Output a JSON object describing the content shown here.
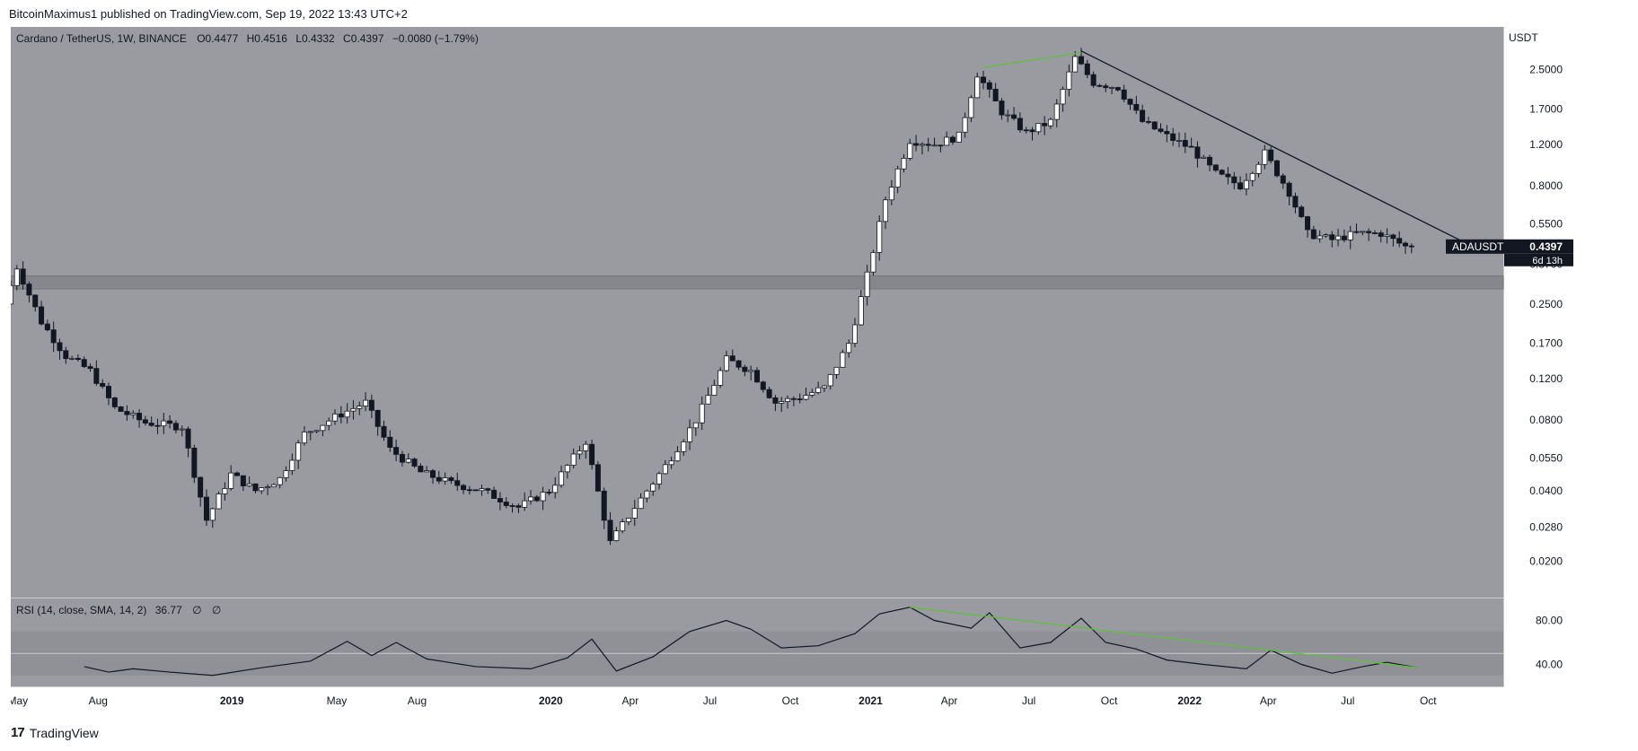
{
  "header": {
    "publisher_line": "BitcoinMaximus1 published on TradingView.com, Sep 19, 2022 13:43 UTC+2"
  },
  "legend": {
    "symbol": "Cardano / TetherUS, 1W, BINANCE",
    "o_label": "O",
    "o_value": "0.4477",
    "h_label": "H",
    "h_value": "0.4516",
    "l_label": "L",
    "l_value": "0.4332",
    "c_label": "C",
    "c_value": "0.4397",
    "change": "−0.0080 (−1.79%)"
  },
  "rsi_legend": {
    "label": "RSI (14, close, SMA, 14, 2)",
    "value": "36.77",
    "extra1": "∅",
    "extra2": "∅"
  },
  "price_badge": {
    "ticker": "ADAUSDT",
    "price": "0.4397",
    "countdown": "6d 13h"
  },
  "footer": {
    "brand": "TradingView",
    "logo_glyph": "17"
  },
  "colors": {
    "background": "#999ba0",
    "up_candle": "#ffffff",
    "down_candle": "#131722",
    "trendline": "#131722",
    "divergence": "#5ec13c",
    "support_zone": "#7f8187",
    "badge_bg": "#131722"
  },
  "chart_data": [
    {
      "type": "candlestick",
      "title": "Cardano / TetherUS, 1W, BINANCE",
      "scale": "log",
      "y_unit": "USDT",
      "ylim": [
        0.014,
        3.8
      ],
      "y_ticks": [
        "2.5000",
        "1.7000",
        "1.2000",
        "0.8000",
        "0.5500",
        "0.3700",
        "0.2500",
        "0.1700",
        "0.1200",
        "0.0800",
        "0.0550",
        "0.0400",
        "0.0280",
        "0.0200"
      ],
      "x_ticks": [
        "May",
        "Aug",
        "2019",
        "May",
        "Aug",
        "2020",
        "Apr",
        "Jul",
        "Oct",
        "2021",
        "Apr",
        "Jul",
        "Oct",
        "2022",
        "Apr",
        "Jul",
        "Oct"
      ],
      "xlim": [
        "2018-04-23",
        "2022-12-26"
      ],
      "x_tick_dates": [
        "2018-05-01",
        "2018-08-01",
        "2019-01-01",
        "2019-05-01",
        "2019-08-01",
        "2020-01-01",
        "2020-04-01",
        "2020-07-01",
        "2020-10-01",
        "2021-01-01",
        "2021-04-01",
        "2021-07-01",
        "2021-10-01",
        "2022-01-01",
        "2022-04-01",
        "2022-07-01",
        "2022-10-01"
      ],
      "price_path": [
        [
          "2018-04-23",
          0.25
        ],
        [
          "2018-05-07",
          0.36
        ],
        [
          "2018-06-04",
          0.21
        ],
        [
          "2018-07-02",
          0.15
        ],
        [
          "2018-07-30",
          0.13
        ],
        [
          "2018-08-27",
          0.09
        ],
        [
          "2018-10-01",
          0.078
        ],
        [
          "2018-11-12",
          0.075
        ],
        [
          "2018-12-10",
          0.03
        ],
        [
          "2019-01-07",
          0.047
        ],
        [
          "2019-02-04",
          0.04
        ],
        [
          "2019-03-04",
          0.045
        ],
        [
          "2019-04-01",
          0.07
        ],
        [
          "2019-05-13",
          0.085
        ],
        [
          "2019-06-10",
          0.095
        ],
        [
          "2019-07-08",
          0.06
        ],
        [
          "2019-08-12",
          0.048
        ],
        [
          "2019-09-16",
          0.043
        ],
        [
          "2019-10-21",
          0.04
        ],
        [
          "2019-12-02",
          0.034
        ],
        [
          "2020-01-06",
          0.04
        ],
        [
          "2020-02-17",
          0.065
        ],
        [
          "2020-03-16",
          0.024
        ],
        [
          "2020-04-13",
          0.034
        ],
        [
          "2020-05-18",
          0.051
        ],
        [
          "2020-06-22",
          0.08
        ],
        [
          "2020-07-27",
          0.145
        ],
        [
          "2020-08-24",
          0.13
        ],
        [
          "2020-09-21",
          0.095
        ],
        [
          "2020-10-19",
          0.1
        ],
        [
          "2020-11-16",
          0.11
        ],
        [
          "2020-12-14",
          0.17
        ],
        [
          "2021-01-04",
          0.33
        ],
        [
          "2021-01-25",
          0.7
        ],
        [
          "2021-02-22",
          1.25
        ],
        [
          "2021-03-22",
          1.2
        ],
        [
          "2021-04-19",
          1.3
        ],
        [
          "2021-05-10",
          2.4
        ],
        [
          "2021-06-07",
          1.65
        ],
        [
          "2021-07-05",
          1.35
        ],
        [
          "2021-08-02",
          1.5
        ],
        [
          "2021-08-30",
          2.8
        ],
        [
          "2021-09-20",
          2.2
        ],
        [
          "2021-10-18",
          2.1
        ],
        [
          "2021-11-15",
          1.5
        ],
        [
          "2021-12-13",
          1.3
        ],
        [
          "2022-01-10",
          1.15
        ],
        [
          "2022-02-07",
          0.9
        ],
        [
          "2022-03-07",
          0.8
        ],
        [
          "2022-04-04",
          1.1
        ],
        [
          "2022-05-02",
          0.75
        ],
        [
          "2022-05-23",
          0.5
        ],
        [
          "2022-06-20",
          0.47
        ],
        [
          "2022-07-18",
          0.5
        ],
        [
          "2022-08-15",
          0.5
        ],
        [
          "2022-09-12",
          0.44
        ]
      ],
      "support_zone": [
        0.29,
        0.33
      ],
      "descending_resistance": [
        [
          "2021-08-30",
          3.0
        ],
        [
          "2022-11-21",
          0.44
        ]
      ],
      "last_price": 0.4397
    },
    {
      "type": "line",
      "title": "RSI (14, close, SMA, 14, 2)",
      "y_ticks": [
        "80.00",
        "40.00"
      ],
      "band": [
        30,
        70
      ],
      "ylim": [
        20,
        100
      ],
      "series": [
        {
          "values": [
            [
              "2018-07-16",
              38
            ],
            [
              "2018-08-13",
              33
            ],
            [
              "2018-09-10",
              36
            ],
            [
              "2018-10-22",
              33
            ],
            [
              "2018-12-10",
              30
            ],
            [
              "2019-02-04",
              37
            ],
            [
              "2019-04-01",
              43
            ],
            [
              "2019-05-13",
              61
            ],
            [
              "2019-06-10",
              48
            ],
            [
              "2019-07-08",
              60
            ],
            [
              "2019-08-12",
              45
            ],
            [
              "2019-10-07",
              38
            ],
            [
              "2019-12-09",
              36
            ],
            [
              "2020-01-20",
              46
            ],
            [
              "2020-02-17",
              63
            ],
            [
              "2020-03-16",
              34
            ],
            [
              "2020-04-27",
              47
            ],
            [
              "2020-06-08",
              70
            ],
            [
              "2020-07-20",
              80
            ],
            [
              "2020-08-17",
              72
            ],
            [
              "2020-09-21",
              55
            ],
            [
              "2020-11-02",
              57
            ],
            [
              "2020-12-14",
              68
            ],
            [
              "2021-01-11",
              86
            ],
            [
              "2021-02-15",
              92
            ],
            [
              "2021-03-15",
              80
            ],
            [
              "2021-04-26",
              73
            ],
            [
              "2021-05-17",
              87
            ],
            [
              "2021-06-21",
              55
            ],
            [
              "2021-07-26",
              60
            ],
            [
              "2021-08-30",
              82
            ],
            [
              "2021-09-27",
              60
            ],
            [
              "2021-11-01",
              54
            ],
            [
              "2021-12-06",
              44
            ],
            [
              "2022-01-17",
              40
            ],
            [
              "2022-03-07",
              36
            ],
            [
              "2022-04-04",
              53
            ],
            [
              "2022-05-09",
              40
            ],
            [
              "2022-06-13",
              32
            ],
            [
              "2022-07-18",
              38
            ],
            [
              "2022-08-15",
              42
            ],
            [
              "2022-09-19",
              37
            ]
          ]
        }
      ],
      "last_value": 36.77,
      "bearish_divergence": [
        [
          "2021-02-15",
          92
        ],
        [
          "2022-09-19",
          37
        ]
      ]
    }
  ]
}
